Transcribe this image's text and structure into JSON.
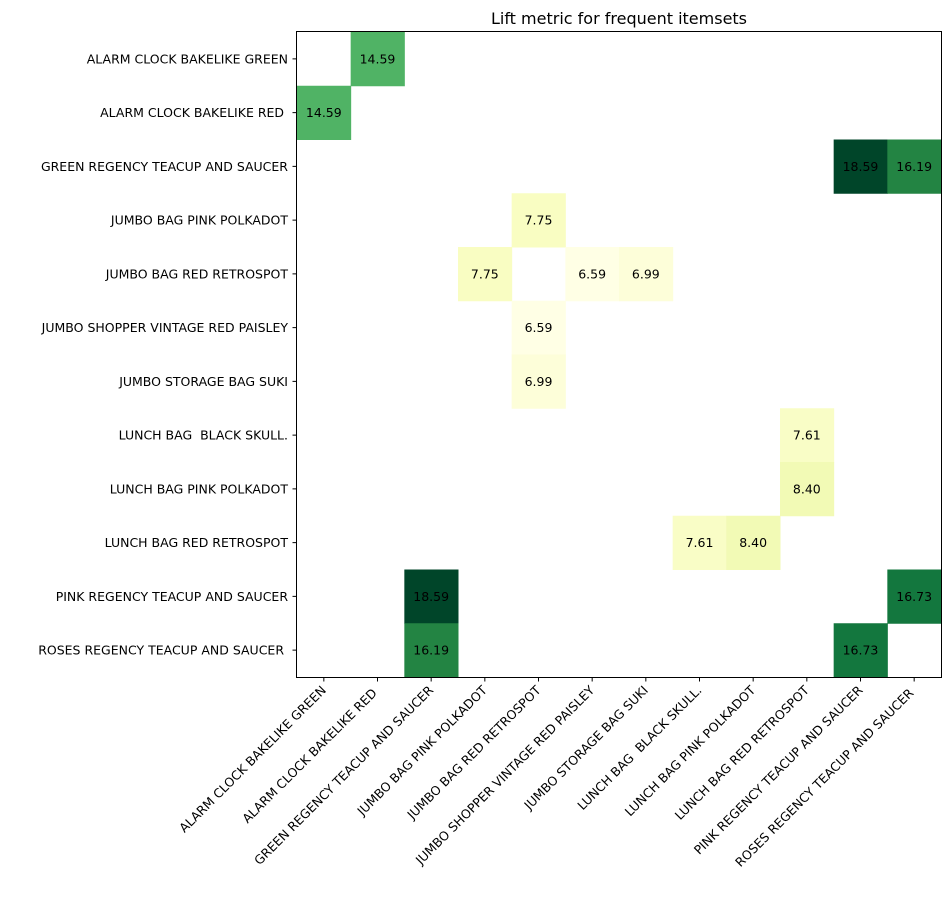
{
  "chart_data": {
    "type": "heatmap",
    "title": "Lift metric for frequent itemsets",
    "xlabel": "",
    "ylabel": "",
    "colormap": "Greens (yellow-green)",
    "color_range": [
      6.59,
      18.59
    ],
    "categories_x": [
      "ALARM CLOCK BAKELIKE GREEN",
      "ALARM CLOCK BAKELIKE RED ",
      "GREEN REGENCY TEACUP AND SAUCER",
      "JUMBO BAG PINK POLKADOT",
      "JUMBO BAG RED RETROSPOT",
      "JUMBO SHOPPER VINTAGE RED PAISLEY",
      "JUMBO STORAGE BAG SUKI",
      "LUNCH BAG  BLACK SKULL.",
      "LUNCH BAG PINK POLKADOT",
      "LUNCH BAG RED RETROSPOT",
      "PINK REGENCY TEACUP AND SAUCER",
      "ROSES REGENCY TEACUP AND SAUCER "
    ],
    "categories_y": [
      "ALARM CLOCK BAKELIKE GREEN",
      "ALARM CLOCK BAKELIKE RED ",
      "GREEN REGENCY TEACUP AND SAUCER",
      "JUMBO BAG PINK POLKADOT",
      "JUMBO BAG RED RETROSPOT",
      "JUMBO SHOPPER VINTAGE RED PAISLEY",
      "JUMBO STORAGE BAG SUKI",
      "LUNCH BAG  BLACK SKULL.",
      "LUNCH BAG PINK POLKADOT",
      "LUNCH BAG RED RETROSPOT",
      "PINK REGENCY TEACUP AND SAUCER",
      "ROSES REGENCY TEACUP AND SAUCER "
    ],
    "cells": [
      {
        "row": 0,
        "col": 1,
        "value": 14.59,
        "label": "14.59"
      },
      {
        "row": 1,
        "col": 0,
        "value": 14.59,
        "label": "14.59"
      },
      {
        "row": 2,
        "col": 10,
        "value": 18.59,
        "label": "18.59"
      },
      {
        "row": 2,
        "col": 11,
        "value": 16.19,
        "label": "16.19"
      },
      {
        "row": 3,
        "col": 4,
        "value": 7.75,
        "label": "7.75"
      },
      {
        "row": 4,
        "col": 3,
        "value": 7.75,
        "label": "7.75"
      },
      {
        "row": 4,
        "col": 5,
        "value": 6.59,
        "label": "6.59"
      },
      {
        "row": 4,
        "col": 6,
        "value": 6.99,
        "label": "6.99"
      },
      {
        "row": 5,
        "col": 4,
        "value": 6.59,
        "label": "6.59"
      },
      {
        "row": 6,
        "col": 4,
        "value": 6.99,
        "label": "6.99"
      },
      {
        "row": 7,
        "col": 9,
        "value": 7.61,
        "label": "7.61"
      },
      {
        "row": 8,
        "col": 9,
        "value": 8.4,
        "label": "8.40"
      },
      {
        "row": 9,
        "col": 7,
        "value": 7.61,
        "label": "7.61"
      },
      {
        "row": 9,
        "col": 8,
        "value": 8.4,
        "label": "8.40"
      },
      {
        "row": 10,
        "col": 2,
        "value": 18.59,
        "label": "18.59"
      },
      {
        "row": 10,
        "col": 11,
        "value": 16.73,
        "label": "16.73"
      },
      {
        "row": 11,
        "col": 2,
        "value": 16.19,
        "label": "16.19"
      },
      {
        "row": 11,
        "col": 10,
        "value": 16.73,
        "label": "16.73"
      }
    ],
    "grid": false,
    "colors": {
      "low": "#ffffe5",
      "mid": "#f1f9b8",
      "high_mid": "#31a354",
      "high": "#004529"
    }
  }
}
